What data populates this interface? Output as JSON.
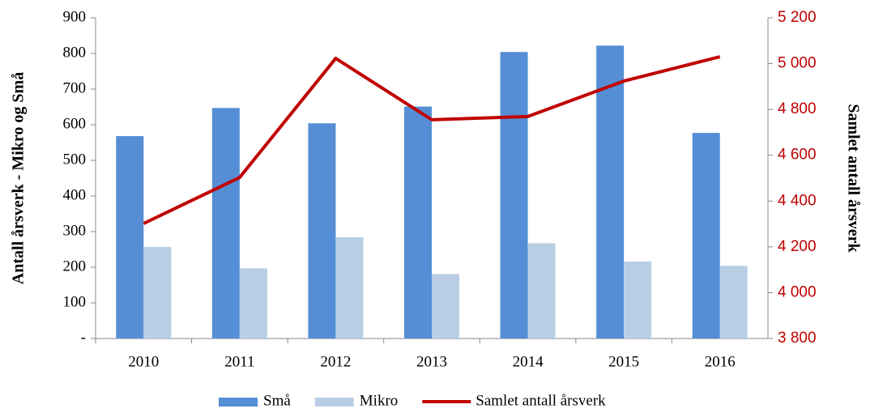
{
  "chart_data": {
    "type": "bar",
    "categories": [
      "2010",
      "2011",
      "2012",
      "2013",
      "2014",
      "2015",
      "2016"
    ],
    "series": [
      {
        "name": "Små",
        "color": "#558ed5",
        "values": [
          568,
          647,
          604,
          651,
          804,
          822,
          577
        ]
      },
      {
        "name": "Mikro",
        "color": "#b9cde5",
        "values": [
          257,
          197,
          284,
          181,
          267,
          216,
          204
        ]
      },
      {
        "name": "Samlet antall årsverk",
        "color": "#c00000",
        "type": "line",
        "axis": "y2",
        "values": [
          4302,
          4503,
          5023,
          4755,
          4769,
          4924,
          5030
        ]
      }
    ],
    "y_label": "Antall årsverk - Mikro og Små",
    "y2_label": "Samlet antall årsverk",
    "ylim": [
      0,
      900
    ],
    "yticks": [
      {
        "value": 0,
        "label": "-"
      },
      100,
      200,
      300,
      400,
      500,
      600,
      700,
      800,
      900
    ],
    "y2lim": [
      3800,
      5200
    ],
    "y2ticks": [
      {
        "value": 3800,
        "label": "3 800"
      },
      {
        "value": 4000,
        "label": "4 000"
      },
      {
        "value": 4200,
        "label": "4 200"
      },
      {
        "value": 4400,
        "label": "4 400"
      },
      {
        "value": 4600,
        "label": "4 600"
      },
      {
        "value": 4800,
        "label": "4 800"
      },
      {
        "value": 5000,
        "label": "5 000"
      },
      {
        "value": 5200,
        "label": "5 200"
      }
    ],
    "legend": "bottom"
  }
}
